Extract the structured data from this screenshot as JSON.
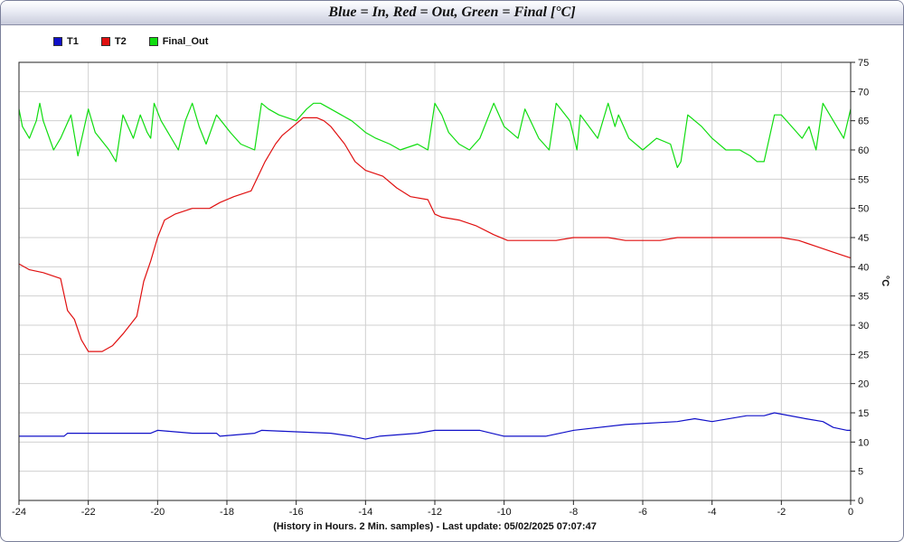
{
  "title": "Blue = In,  Red = Out, Green = Final [°C]",
  "footer": "(History in Hours. 2 Min. samples) - Last update: 05/02/2025 07:07:47",
  "colors": {
    "T1": "#1010c8",
    "T2": "#e01010",
    "Final_Out": "#10dd10",
    "grid": "#d0d0d0"
  },
  "chart_data": {
    "type": "line",
    "title": "Blue = In,  Red = Out, Green = Final [°C]",
    "xlabel": "(History in Hours. 2 Min. samples) - Last update: 05/02/2025 07:07:47",
    "ylabel": "°C",
    "xlim": [
      -24,
      0
    ],
    "ylim": [
      0,
      75
    ],
    "xticks": [
      "-24",
      "-22",
      "-20",
      "-18",
      "-16",
      "-14",
      "-12",
      "-10",
      "-8",
      "-6",
      "-4",
      "-2",
      "0"
    ],
    "yticks": [
      "0",
      "5",
      "10",
      "15",
      "20",
      "25",
      "30",
      "35",
      "40",
      "45",
      "50",
      "55",
      "60",
      "65",
      "70",
      "75"
    ],
    "grid": true,
    "legend": "top-left",
    "series": [
      {
        "name": "T1",
        "color": "#1010c8",
        "x": [
          -24,
          -22.7,
          -22.6,
          -21,
          -20.2,
          -20,
          -19,
          -18.3,
          -18.2,
          -17.2,
          -17.0,
          -15,
          -14.4,
          -14.0,
          -13.6,
          -12.5,
          -12,
          -10.7,
          -10,
          -8.8,
          -8,
          -6.5,
          -5,
          -4.5,
          -4,
          -3,
          -2.5,
          -2.2,
          -1.3,
          -0.8,
          -0.5,
          -0.1,
          0
        ],
        "y": [
          11,
          11,
          11.5,
          11.5,
          11.5,
          12,
          11.5,
          11.5,
          11,
          11.5,
          12,
          11.5,
          11,
          10.5,
          11,
          11.5,
          12,
          12,
          11,
          11,
          12,
          13,
          13.5,
          14,
          13.5,
          14.5,
          14.5,
          15,
          14,
          13.5,
          12.5,
          12,
          12
        ]
      },
      {
        "name": "T2",
        "color": "#e01010",
        "x": [
          -24,
          -23.7,
          -23.3,
          -22.8,
          -22.6,
          -22.4,
          -22.2,
          -22.0,
          -21.8,
          -21.6,
          -21.3,
          -21.0,
          -20.6,
          -20.4,
          -20.2,
          -20.0,
          -19.8,
          -19.5,
          -19.0,
          -18.5,
          -18.2,
          -17.8,
          -17.3,
          -16.9,
          -16.6,
          -16.4,
          -16.2,
          -15.8,
          -15.4,
          -15.2,
          -15.0,
          -14.6,
          -14.3,
          -14.0,
          -13.5,
          -13.1,
          -12.7,
          -12.2,
          -12.0,
          -11.8,
          -11.3,
          -10.8,
          -10.3,
          -9.9,
          -9.5,
          -9.0,
          -8.5,
          -8.0,
          -7.5,
          -7.0,
          -6.5,
          -6.0,
          -5.5,
          -5.0,
          -4.5,
          -4.0,
          -3.5,
          -3.0,
          -2.5,
          -2.0,
          -1.5,
          -1.0,
          -0.5,
          0
        ],
        "y": [
          40.5,
          39.5,
          39,
          38,
          32.5,
          31,
          27.5,
          25.5,
          25.5,
          25.5,
          26.5,
          28.5,
          31.5,
          37.5,
          41,
          45,
          48,
          49,
          50,
          50,
          51,
          52,
          53,
          58,
          61,
          62.5,
          63.5,
          65.5,
          65.5,
          65,
          64,
          61,
          58,
          56.5,
          55.5,
          53.5,
          52,
          51.5,
          49,
          48.5,
          48,
          47,
          45.5,
          44.5,
          44.5,
          44.5,
          44.5,
          45,
          45,
          45,
          44.5,
          44.5,
          44.5,
          45,
          45,
          45,
          45,
          45,
          45,
          45,
          44.5,
          43.5,
          42.5,
          41.5
        ]
      },
      {
        "name": "Final_Out",
        "color": "#10dd10",
        "x": [
          -24,
          -23.9,
          -23.7,
          -23.5,
          -23.4,
          -23.3,
          -23.0,
          -22.8,
          -22.5,
          -22.3,
          -22.0,
          -21.8,
          -21.4,
          -21.2,
          -21.0,
          -20.7,
          -20.5,
          -20.3,
          -20.2,
          -20.1,
          -19.9,
          -19.7,
          -19.4,
          -19.2,
          -19.0,
          -18.8,
          -18.6,
          -18.3,
          -17.9,
          -17.6,
          -17.2,
          -17.0,
          -16.8,
          -16.5,
          -16.0,
          -15.7,
          -15.5,
          -15.3,
          -15.0,
          -14.7,
          -14.4,
          -14.2,
          -14.0,
          -13.7,
          -13.3,
          -13.0,
          -12.5,
          -12.2,
          -12.0,
          -11.8,
          -11.6,
          -11.3,
          -11.0,
          -10.7,
          -10.3,
          -10.0,
          -9.6,
          -9.4,
          -9.0,
          -8.7,
          -8.5,
          -8.1,
          -7.9,
          -7.8,
          -7.3,
          -7.0,
          -6.8,
          -6.7,
          -6.4,
          -6.0,
          -5.6,
          -5.2,
          -5.0,
          -4.9,
          -4.7,
          -4.3,
          -4.0,
          -3.6,
          -3.2,
          -2.9,
          -2.7,
          -2.5,
          -2.2,
          -2.0,
          -1.7,
          -1.4,
          -1.2,
          -1.0,
          -0.8,
          -0.5,
          -0.2,
          0
        ],
        "y": [
          67,
          64,
          62,
          65,
          68,
          65,
          60,
          62,
          66,
          59,
          67,
          63,
          60,
          58,
          66,
          62,
          66,
          63,
          62,
          68,
          65,
          63,
          60,
          65,
          68,
          64,
          61,
          66,
          63,
          61,
          60,
          68,
          67,
          66,
          65,
          67,
          68,
          68,
          67,
          66,
          65,
          64,
          63,
          62,
          61,
          60,
          61,
          60,
          68,
          66,
          63,
          61,
          60,
          62,
          68,
          64,
          62,
          67,
          62,
          60,
          68,
          65,
          60,
          66,
          62,
          68,
          64,
          66,
          62,
          60,
          62,
          61,
          57,
          58,
          66,
          64,
          62,
          60,
          60,
          59,
          58,
          58,
          66,
          66,
          64,
          62,
          64,
          60,
          68,
          65,
          62,
          67
        ]
      }
    ]
  }
}
